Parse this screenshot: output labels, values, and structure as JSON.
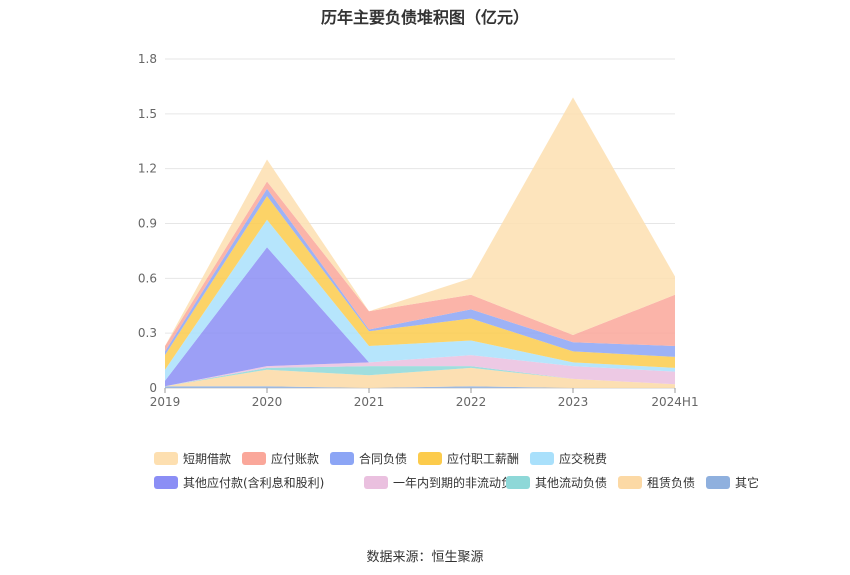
{
  "chart_data": {
    "type": "area",
    "title": "历年主要负债堆积图（亿元）",
    "x": [
      "2019",
      "2020",
      "2021",
      "2022",
      "2023",
      "2024H1"
    ],
    "ylim": [
      0,
      1.8
    ],
    "yticks": [
      "0",
      "0.3",
      "0.6",
      "0.9",
      "1.2",
      "1.5",
      "1.8"
    ],
    "grid": true,
    "legend_position": "bottom",
    "series": [
      {
        "name": "其它",
        "color": "#8fb0de",
        "values": [
          0.01,
          0.01,
          0.0,
          0.01,
          0.0,
          0.0
        ]
      },
      {
        "name": "租赁负债",
        "color": "#fcd9a5",
        "values": [
          0.0,
          0.09,
          0.07,
          0.1,
          0.05,
          0.02
        ]
      },
      {
        "name": "其他流动负债",
        "color": "#8ed8d8",
        "values": [
          0.0,
          0.01,
          0.05,
          0.01,
          0.0,
          0.0
        ]
      },
      {
        "name": "一年内到期的非流动负债",
        "color": "#eac0df",
        "values": [
          0.0,
          0.01,
          0.02,
          0.06,
          0.07,
          0.07
        ]
      },
      {
        "name": "其他应付款(含利息和股利)",
        "color": "#8b8ef5",
        "values": [
          0.03,
          0.65,
          0.0,
          0.0,
          0.0,
          0.0
        ]
      },
      {
        "name": "应交税费",
        "color": "#a9e0fb",
        "values": [
          0.06,
          0.15,
          0.09,
          0.08,
          0.02,
          0.02
        ]
      },
      {
        "name": "应付职工薪酬",
        "color": "#fccb4c",
        "values": [
          0.08,
          0.13,
          0.08,
          0.12,
          0.06,
          0.06
        ]
      },
      {
        "name": "合同负债",
        "color": "#8ca5f5",
        "values": [
          0.02,
          0.04,
          0.01,
          0.05,
          0.05,
          0.06
        ]
      },
      {
        "name": "应付账款",
        "color": "#faa79a",
        "values": [
          0.03,
          0.04,
          0.1,
          0.08,
          0.04,
          0.28
        ]
      },
      {
        "name": "短期借款",
        "color": "#fddfb0",
        "values": [
          0.0,
          0.12,
          0.0,
          0.09,
          1.3,
          0.1
        ]
      }
    ]
  },
  "legend_order": [
    "短期借款",
    "应付账款",
    "合同负债",
    "应付职工薪酬",
    "应交税费",
    "其他应付款(含利息和股利)",
    "一年内到期的非流动负债",
    "其他流动负债",
    "租赁负债",
    "其它"
  ],
  "source": "数据来源：恒生聚源"
}
